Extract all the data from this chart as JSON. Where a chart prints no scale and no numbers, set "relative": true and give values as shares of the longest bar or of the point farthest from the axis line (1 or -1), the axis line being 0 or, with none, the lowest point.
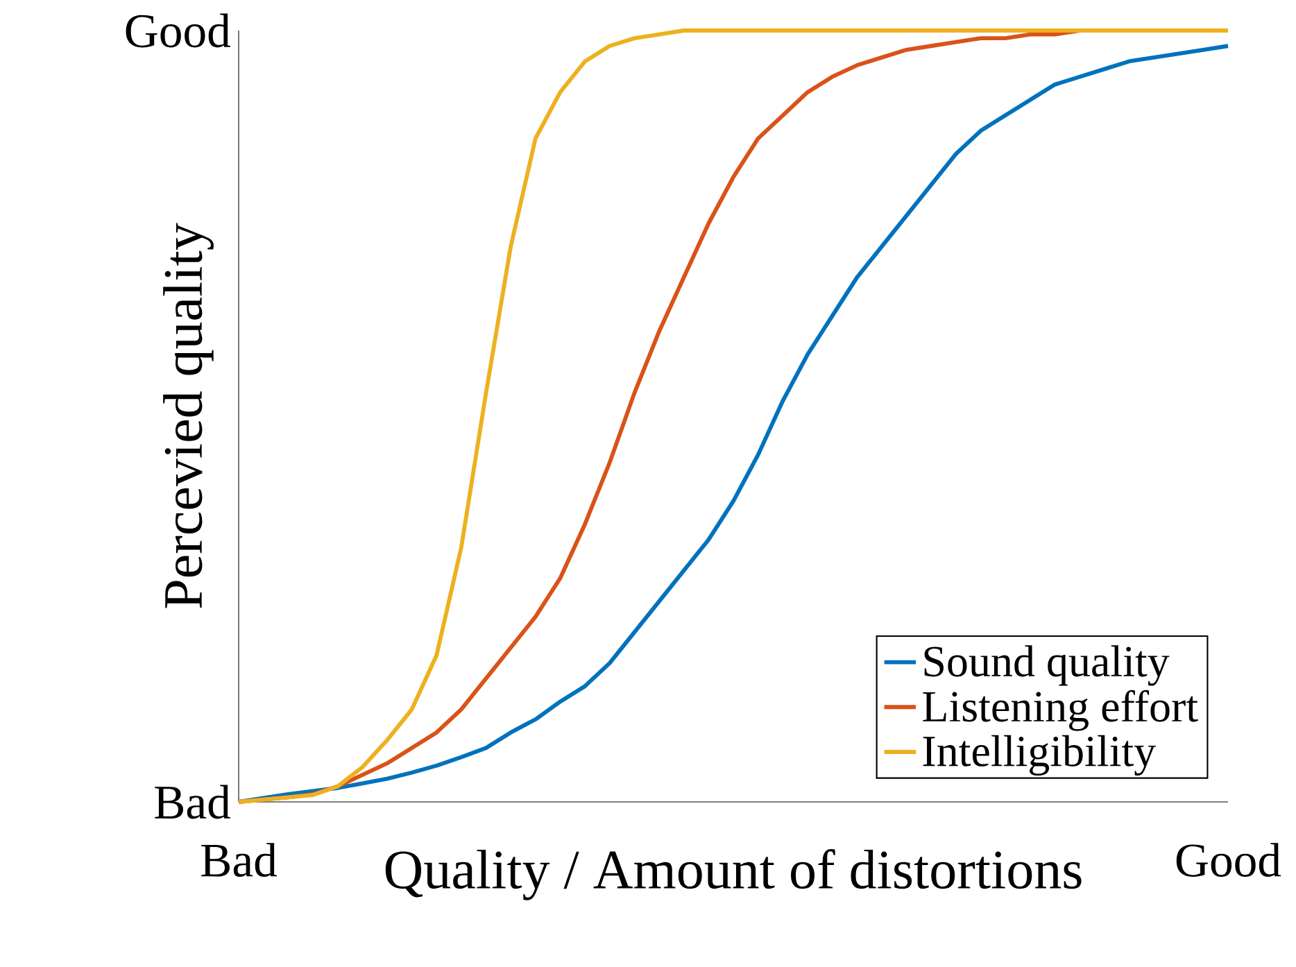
{
  "chart_data": {
    "type": "line",
    "xlabel": "Quality / Amount of distortions",
    "ylabel": "Percevied quality",
    "relative": true,
    "annotations": [
      "Bad",
      "Good",
      "Bad",
      "Good"
    ],
    "legend": "bottom right",
    "marker": "none",
    "line_style": "solid",
    "categories": [
      null,
      null,
      null,
      null,
      null,
      null,
      null,
      null,
      null,
      null,
      null,
      null,
      null,
      null,
      null,
      null,
      null,
      null,
      null,
      null,
      null,
      null,
      null,
      null,
      null,
      null,
      null,
      null,
      null,
      null,
      null,
      null,
      null,
      null,
      null,
      null,
      null,
      null,
      null,
      null,
      null
    ],
    "series": [
      {
        "name": "Sound quality",
        "color": "#0072bd",
        "values": [
          0,
          0.005,
          0.01,
          0.014,
          0.018,
          0.024,
          0.03,
          0.038,
          0.047,
          0.058,
          0.07,
          0.09,
          0.107,
          0.13,
          0.15,
          0.18,
          0.22,
          0.26,
          0.3,
          0.34,
          0.39,
          0.45,
          0.52,
          0.58,
          0.63,
          0.68,
          0.72,
          0.76,
          0.8,
          0.84,
          0.87,
          0.89,
          0.91,
          0.93,
          0.94,
          0.95,
          0.96,
          0.965,
          0.97,
          0.975,
          0.98
        ]
      },
      {
        "name": "Listening effort",
        "color": "#d95319",
        "values": [
          0,
          0.003,
          0.006,
          0.01,
          0.02,
          0.035,
          0.05,
          0.07,
          0.09,
          0.12,
          0.16,
          0.2,
          0.24,
          0.29,
          0.36,
          0.44,
          0.53,
          0.61,
          0.68,
          0.75,
          0.81,
          0.86,
          0.89,
          0.92,
          0.94,
          0.955,
          0.965,
          0.975,
          0.98,
          0.985,
          0.99,
          0.99,
          0.995,
          0.995,
          1,
          1,
          null,
          null,
          null,
          null,
          null
        ]
      },
      {
        "name": "Intelligibility",
        "color": "#edb120",
        "values": [
          0,
          0.003,
          0.006,
          0.009,
          0.02,
          0.045,
          0.08,
          0.12,
          0.19,
          0.33,
          0.53,
          0.72,
          0.86,
          0.92,
          0.96,
          0.98,
          0.99,
          0.995,
          1,
          1,
          1,
          1,
          1,
          1,
          1,
          1,
          1,
          1,
          1,
          1,
          1,
          1,
          1,
          1,
          1,
          1,
          1,
          1,
          1,
          1,
          1
        ]
      }
    ]
  }
}
